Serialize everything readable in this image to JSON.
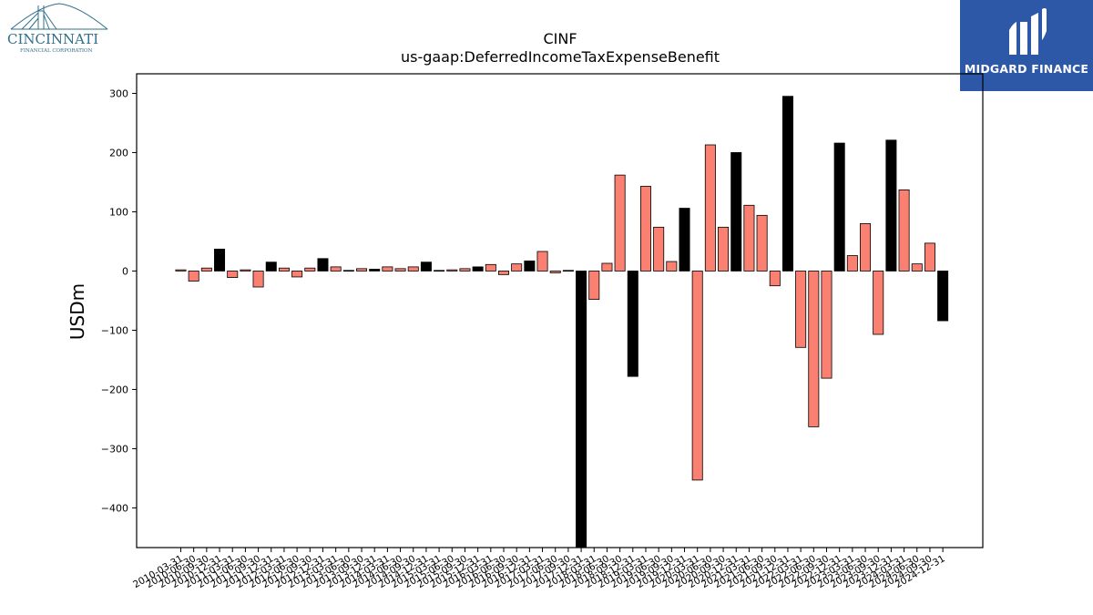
{
  "logos": {
    "left": {
      "name": "CINCINNATI",
      "sub": "FINANCIAL CORPORATION",
      "color": "#2f6f8a"
    },
    "right": {
      "name": "MIDGARD FINANCE",
      "bg": "#2d58a8"
    }
  },
  "chart_data": {
    "type": "bar",
    "title": "CINF",
    "subtitle": "us-gaap:DeferredIncomeTaxExpenseBenefit",
    "xlabel": "",
    "ylabel": "USDm",
    "ylim": [
      -467,
      333
    ],
    "yticks": [
      300,
      200,
      100,
      0,
      -100,
      -200,
      -300,
      -400
    ],
    "ytick_labels": [
      "300",
      "200",
      "100",
      "0",
      "−100",
      "−200",
      "−300",
      "−400"
    ],
    "grid": false,
    "colors": {
      "annual": "#000000",
      "quarter": "#fa8072",
      "edge": "#000000"
    },
    "categories": [
      "2010-03-31",
      "2010-06-30",
      "2010-09-30",
      "2010-12-31",
      "2011-03-31",
      "2011-06-30",
      "2011-09-30",
      "2011-12-31",
      "2012-03-31",
      "2012-06-30",
      "2012-09-30",
      "2012-12-31",
      "2013-03-31",
      "2013-06-30",
      "2013-09-30",
      "2013-12-31",
      "2014-03-31",
      "2014-06-30",
      "2014-09-30",
      "2014-12-31",
      "2015-03-31",
      "2015-06-30",
      "2015-09-30",
      "2015-12-31",
      "2016-03-31",
      "2016-06-30",
      "2016-09-30",
      "2016-12-31",
      "2017-03-31",
      "2017-06-30",
      "2017-09-30",
      "2017-12-31",
      "2018-03-31",
      "2018-06-30",
      "2018-09-30",
      "2018-12-31",
      "2019-03-31",
      "2019-06-30",
      "2019-09-30",
      "2019-12-31",
      "2020-03-31",
      "2020-06-30",
      "2020-09-30",
      "2020-12-31",
      "2021-03-31",
      "2021-06-30",
      "2021-09-30",
      "2021-12-31",
      "2022-03-31",
      "2022-06-30",
      "2022-09-30",
      "2022-12-31",
      "2023-03-31",
      "2023-06-30",
      "2023-09-30",
      "2023-12-31",
      "2024-03-31",
      "2024-06-30",
      "2024-09-30",
      "2024-12-31"
    ],
    "values": [
      2,
      -17,
      5,
      37,
      -11,
      2,
      -27,
      15,
      5,
      -10,
      5,
      21,
      7,
      1,
      4,
      3,
      7,
      4,
      7,
      15,
      1,
      2,
      4,
      7,
      11,
      -6,
      12,
      17,
      33,
      -3,
      1,
      -480,
      -48,
      13,
      162,
      -178,
      143,
      74,
      16,
      106,
      -353,
      213,
      74,
      200,
      111,
      94,
      -25,
      295,
      -129,
      -263,
      -181,
      216,
      26,
      80,
      -107,
      221,
      137,
      12,
      47,
      -84
    ],
    "annual": [
      false,
      false,
      false,
      true,
      false,
      false,
      false,
      true,
      false,
      false,
      false,
      true,
      false,
      false,
      false,
      true,
      false,
      false,
      false,
      true,
      false,
      false,
      false,
      true,
      false,
      false,
      false,
      true,
      false,
      false,
      false,
      true,
      false,
      false,
      false,
      true,
      false,
      false,
      false,
      true,
      false,
      false,
      false,
      true,
      false,
      false,
      false,
      true,
      false,
      false,
      false,
      true,
      false,
      false,
      false,
      true,
      false,
      false,
      false,
      true
    ]
  }
}
